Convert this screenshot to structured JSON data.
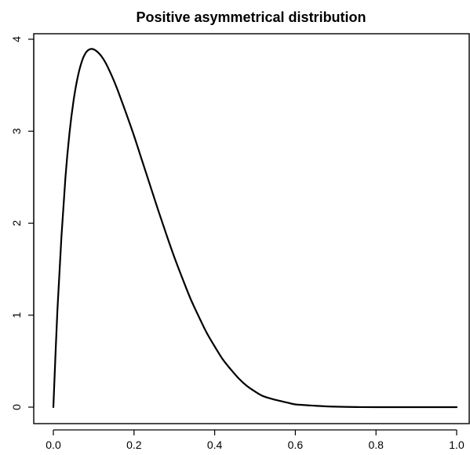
{
  "chart_data": {
    "type": "line",
    "title": "Positive asymmetrical distribution",
    "xlabel": "",
    "ylabel": "",
    "xlim": [
      0,
      1
    ],
    "ylim": [
      0,
      4
    ],
    "x_ticks": [
      "0.0",
      "0.2",
      "0.4",
      "0.6",
      "0.8",
      "1.0"
    ],
    "y_ticks": [
      "0",
      "1",
      "2",
      "3",
      "4"
    ],
    "grid": false,
    "legend": "none",
    "series": [
      {
        "x": [
          0.0,
          0.01,
          0.02,
          0.03,
          0.04,
          0.05,
          0.06,
          0.07,
          0.08,
          0.09,
          0.1,
          0.11,
          0.12,
          0.13,
          0.14,
          0.15,
          0.16,
          0.18,
          0.2,
          0.22,
          0.24,
          0.26,
          0.28,
          0.3,
          0.32,
          0.34,
          0.36,
          0.38,
          0.4,
          0.42,
          0.44,
          0.46,
          0.48,
          0.5,
          0.52,
          0.55,
          0.58,
          0.6,
          0.65,
          0.7,
          0.75,
          0.8,
          0.9,
          1.0
        ],
        "y": [
          0.0,
          1.05,
          1.85,
          2.5,
          2.98,
          3.33,
          3.58,
          3.75,
          3.85,
          3.89,
          3.89,
          3.86,
          3.81,
          3.74,
          3.65,
          3.55,
          3.44,
          3.2,
          2.95,
          2.68,
          2.41,
          2.14,
          1.88,
          1.63,
          1.4,
          1.18,
          0.99,
          0.81,
          0.66,
          0.52,
          0.41,
          0.31,
          0.23,
          0.17,
          0.12,
          0.08,
          0.05,
          0.03,
          0.015,
          0.005,
          0.001,
          0.0,
          0.0,
          0.0
        ]
      }
    ]
  }
}
